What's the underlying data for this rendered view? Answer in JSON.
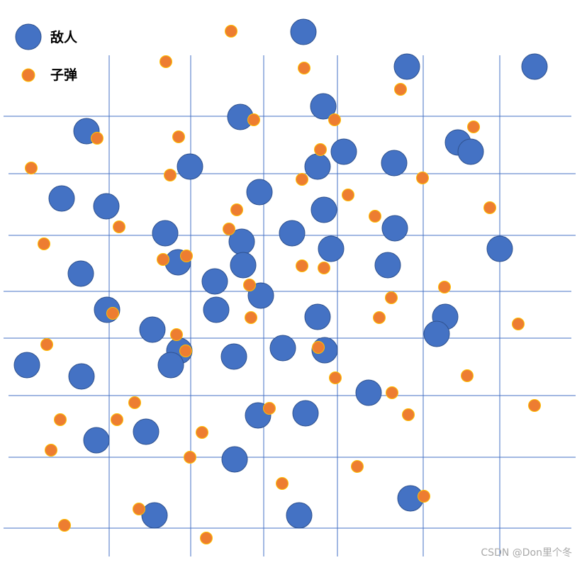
{
  "legend": {
    "enemy_label": "敌人",
    "bullet_label": "子弹"
  },
  "watermark": "CSDN @Don里个冬",
  "colors": {
    "enemy_fill": "#4472c4",
    "enemy_stroke": "#2f528f",
    "bullet_fill": "#ed7d31",
    "bullet_stroke": "#ffc000",
    "grid_line": "#4472c4"
  },
  "icons": {
    "enemy": "blue-circle-icon",
    "bullet": "orange-dot-icon"
  }
}
